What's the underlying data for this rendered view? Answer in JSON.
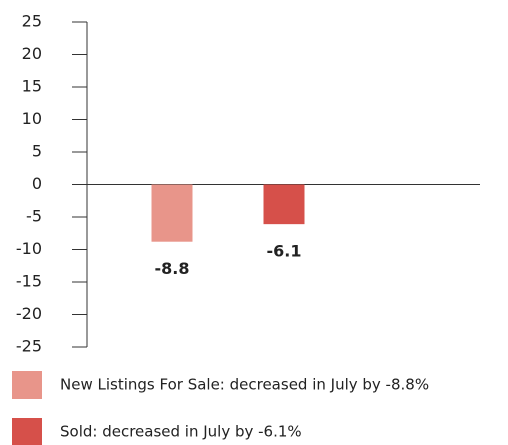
{
  "chart_data": {
    "type": "bar",
    "categories": [
      null
    ],
    "series": [
      {
        "name": "New Listings For Sale: decreased in July by -8.8%",
        "color": "#e8958a",
        "values": [
          -8.8
        ]
      },
      {
        "name": "Sold: decreased in July by -6.1%",
        "color": "#d6504a",
        "values": [
          -6.1
        ]
      }
    ],
    "ylim": [
      -25,
      25
    ],
    "yticks": [
      -25,
      -20,
      -15,
      -10,
      -5,
      0,
      5,
      10,
      15,
      20,
      25
    ],
    "grid": false
  }
}
